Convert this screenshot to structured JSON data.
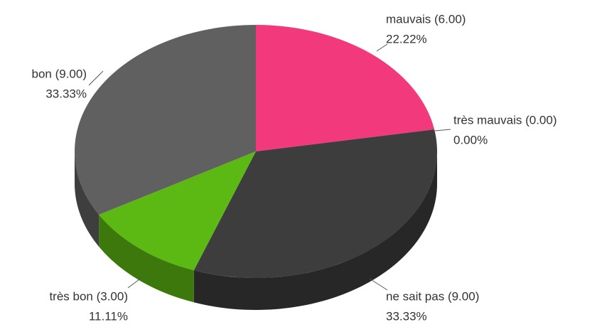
{
  "chart_data": {
    "type": "pie3d",
    "values": [
      6,
      0,
      9,
      3,
      9
    ],
    "value_labels": [
      "mauvais (6.00)",
      "très mauvais (0.00)",
      "ne sait pas (9.00)",
      "très bon (3.00)",
      "bon (9.00)"
    ],
    "percent_labels": [
      "22.22%",
      "0.00%",
      "33.33%",
      "11.11%",
      "33.33%"
    ],
    "colors": [
      "#f2397c",
      "#c2185b",
      "#3d3d3d",
      "#5cb812",
      "#606060"
    ]
  }
}
